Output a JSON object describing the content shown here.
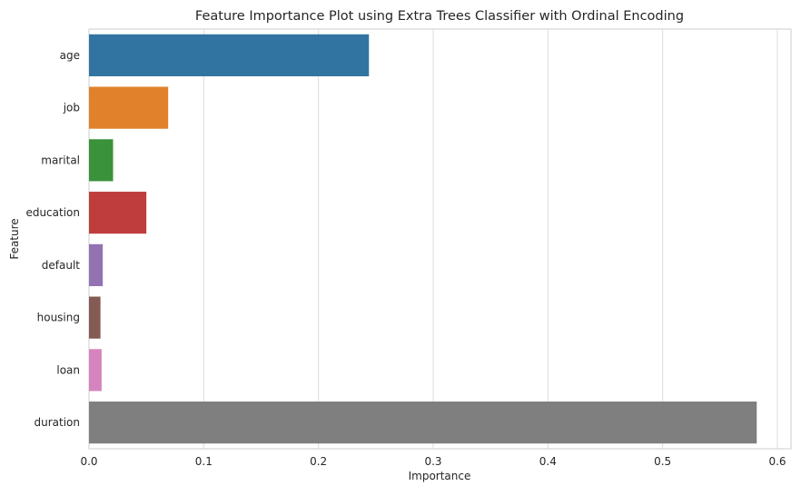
{
  "chart_data": {
    "type": "bar",
    "orientation": "horizontal",
    "title": "Feature Importance Plot using Extra Trees Classifier with Ordinal Encoding",
    "xlabel": "Importance",
    "ylabel": "Feature",
    "xlim": [
      0.0,
      0.6
    ],
    "xticks": [
      "0.0",
      "0.1",
      "0.2",
      "0.3",
      "0.4",
      "0.5",
      "0.6"
    ],
    "grid": "vertical",
    "categories": [
      "age",
      "job",
      "marital",
      "education",
      "default",
      "housing",
      "loan",
      "duration"
    ],
    "values": [
      0.244,
      0.069,
      0.021,
      0.05,
      0.012,
      0.01,
      0.011,
      0.582
    ],
    "colors": [
      "#3274a1",
      "#e1812c",
      "#3a923a",
      "#c03d3e",
      "#9372b2",
      "#845b53",
      "#d684bd",
      "#7f7f7f"
    ]
  }
}
